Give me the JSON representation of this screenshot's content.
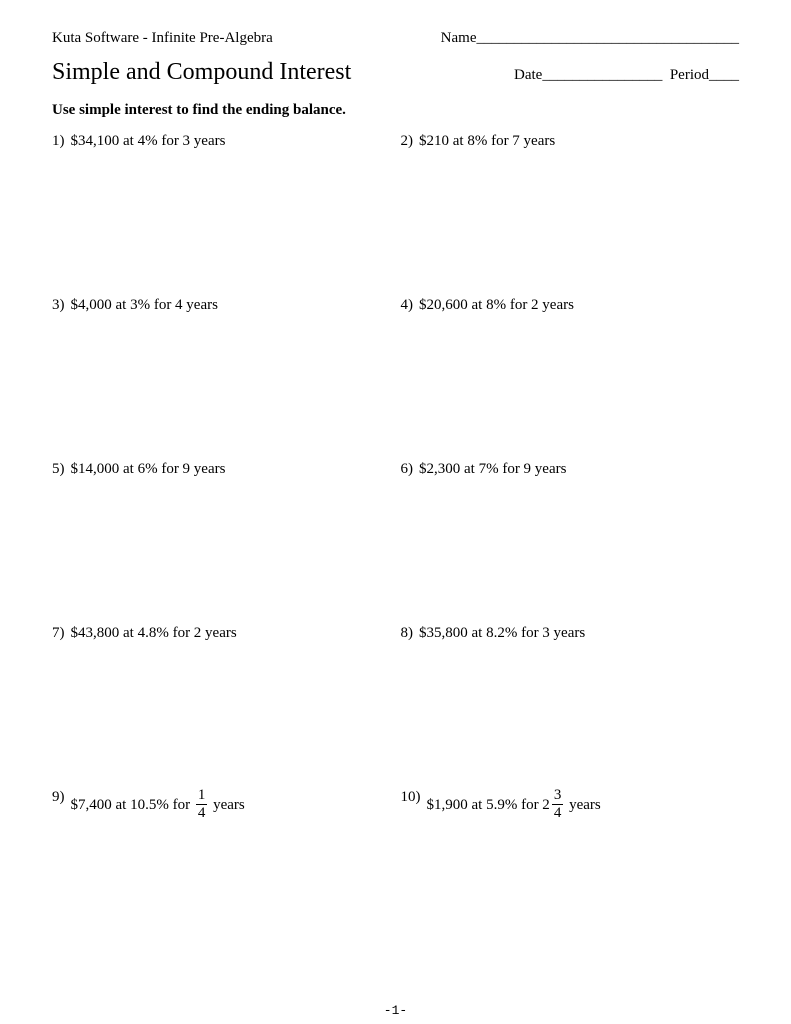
{
  "header": {
    "software": "Kuta Software - Infinite Pre-Algebra",
    "name_label": "Name___________________________________",
    "date_label": "Date________________",
    "period_label": "Period____"
  },
  "title": "Simple and Compound Interest",
  "instruction": "Use simple interest to find the ending balance.",
  "problems": [
    {
      "num": "1)",
      "text": "$34,100 at 4% for 3 years"
    },
    {
      "num": "2)",
      "text": "$210 at 8% for 7 years"
    },
    {
      "num": "3)",
      "text": "$4,000 at 3% for 4 years"
    },
    {
      "num": "4)",
      "text": "$20,600 at 8% for 2 years"
    },
    {
      "num": "5)",
      "text": "$14,000 at 6% for 9 years"
    },
    {
      "num": "6)",
      "text": "$2,300 at 7% for 9 years"
    },
    {
      "num": "7)",
      "text": "$43,800 at 4.8% for 2 years"
    },
    {
      "num": "8)",
      "text": "$35,800 at 8.2% for 3 years"
    },
    {
      "num": "9)",
      "prefix": "$7,400 at 10.5% for ",
      "frac_top": "1",
      "frac_bot": "4",
      "suffix": " years"
    },
    {
      "num": "10)",
      "prefix": "$1,900 at 5.9% for 2",
      "frac_top": "3",
      "frac_bot": "4",
      "suffix": " years"
    }
  ],
  "page_number": "-1-",
  "colors": {
    "background": "#ffffff",
    "text": "#000000"
  },
  "fonts": {
    "body_family": "Times New Roman",
    "body_size_pt": 12,
    "title_size_pt": 18,
    "pagenum_family": "Courier New"
  }
}
